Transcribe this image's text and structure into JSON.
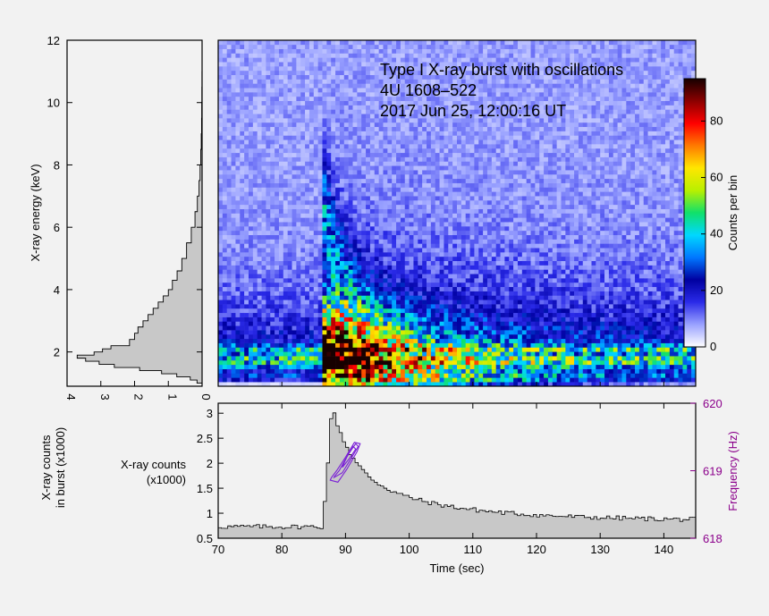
{
  "chart_data": [
    {
      "type": "heatmap",
      "id": "dynamic-spectrum",
      "title": [
        "Type I X-ray burst with oscillations",
        "4U 1608–522",
        "2017 Jun 25, 12:00:16 UT"
      ],
      "xlim": [
        70,
        145
      ],
      "ylim": [
        0.9,
        12
      ],
      "ylabel": "X-ray energy (keV)",
      "burst_onset_sec": 86.2,
      "persistent_band_keV": [
        1.0,
        2.2
      ],
      "colorbar": {
        "label": "Counts per bin",
        "range": [
          0,
          95
        ],
        "ticks": [
          0,
          20,
          40,
          60,
          80
        ],
        "colors": [
          "#ffffff",
          "#9aa2ff",
          "#2a2ae8",
          "#0000a0",
          "#0077ff",
          "#00d8ff",
          "#10e06a",
          "#b8f000",
          "#ffe600",
          "#ff7a00",
          "#ff0000",
          "#8b0000",
          "#160000"
        ]
      }
    },
    {
      "type": "area",
      "id": "energy-spectrum",
      "orientation": "horizontal",
      "xlabel": "X-ray counts in burst (x1000)",
      "xlim": [
        4,
        0
      ],
      "xticks": [
        4,
        3,
        2,
        1,
        0
      ],
      "ylim": [
        0.9,
        12
      ],
      "yticks": [
        2,
        4,
        6,
        8,
        10,
        12
      ],
      "energy": [
        1.0,
        1.1,
        1.2,
        1.3,
        1.4,
        1.5,
        1.6,
        1.7,
        1.8,
        1.9,
        2.0,
        2.1,
        2.2,
        2.4,
        2.6,
        2.8,
        3.0,
        3.2,
        3.4,
        3.6,
        3.8,
        4.0,
        4.3,
        4.6,
        5.0,
        5.5,
        6.0,
        6.5,
        7.0,
        7.5,
        8.0,
        8.5,
        9.0,
        9.5,
        10.0,
        10.5,
        11.0
      ],
      "counts": [
        0.15,
        0.35,
        0.75,
        1.2,
        1.85,
        2.6,
        3.05,
        3.45,
        3.7,
        3.2,
        2.95,
        2.7,
        2.15,
        2.0,
        1.9,
        1.75,
        1.6,
        1.45,
        1.3,
        1.15,
        1.0,
        0.88,
        0.74,
        0.6,
        0.46,
        0.32,
        0.21,
        0.14,
        0.09,
        0.06,
        0.04,
        0.025,
        0.015,
        0.01,
        0.006,
        0.003,
        0.0
      ]
    },
    {
      "type": "area",
      "id": "light-curve",
      "xlabel": "Time (sec)",
      "ylabel": "X-ray counts (x1000)",
      "xlim": [
        70,
        145
      ],
      "xticks": [
        70,
        80,
        90,
        100,
        110,
        120,
        130,
        140
      ],
      "ylim": [
        0.5,
        3.2
      ],
      "yticks": [
        0.5,
        1,
        1.5,
        2,
        2.5,
        3
      ],
      "baseline": 0.73,
      "onset": 86.2,
      "peak_time": 87.6,
      "peak": 3.02,
      "secondary_axis": {
        "label": "Frequency (Hz)",
        "ylim": [
          618,
          620
        ],
        "ticks": [
          618,
          619,
          620
        ],
        "color": "#8b008b"
      },
      "oscillation_contours": [
        {
          "t": [
            87.6,
            88.8,
            90.2,
            91.8,
            92.3,
            91.4,
            90.0,
            88.6,
            87.8
          ],
          "f": [
            618.86,
            618.83,
            619.02,
            619.28,
            619.4,
            619.42,
            619.2,
            619.0,
            618.9
          ]
        },
        {
          "t": [
            88.2,
            89.5,
            91.0,
            92.0,
            91.6,
            90.4,
            89.0,
            88.3
          ],
          "f": [
            618.9,
            618.97,
            619.2,
            619.36,
            619.4,
            619.24,
            619.0,
            618.92
          ]
        },
        {
          "t": [
            89.5,
            90.6,
            91.6,
            91.2,
            90.2,
            89.6
          ],
          "f": [
            619.05,
            619.18,
            619.32,
            619.36,
            619.2,
            619.08
          ]
        }
      ]
    }
  ]
}
